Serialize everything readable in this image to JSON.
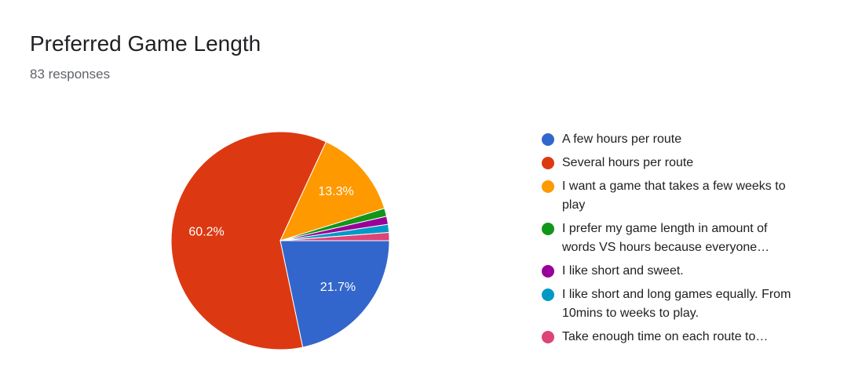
{
  "chart_data": {
    "type": "pie",
    "title": "Preferred Game Length",
    "subtitle": "83 responses",
    "categories": [
      "A few hours per route",
      "Several hours per route",
      "I want a game that takes a few weeks to play",
      "I prefer my game length in amount of words VS hours because everyone…",
      "I like short and sweet.",
      "I like short and long games equally. From 10mins to weeks to play.",
      "Take enough time on each route to…"
    ],
    "values": [
      21.7,
      60.2,
      13.3,
      1.2,
      1.2,
      1.2,
      1.2
    ],
    "value_labels": [
      "21.7%",
      "60.2%",
      "13.3%",
      null,
      null,
      null,
      null
    ],
    "colors": [
      "#3366cc",
      "#dc3912",
      "#ff9900",
      "#109618",
      "#990099",
      "#0099c6",
      "#dd4477"
    ]
  }
}
